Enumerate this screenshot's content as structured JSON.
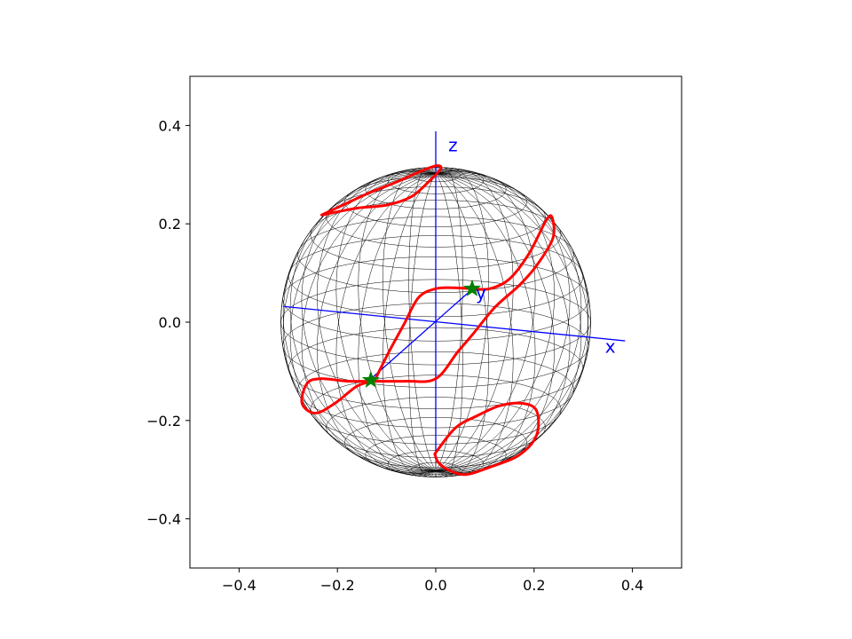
{
  "chart_data": {
    "type": "line",
    "title": "",
    "xlabel": "",
    "ylabel": "",
    "xlim": [
      -0.5,
      0.5
    ],
    "ylim": [
      -0.5,
      0.5
    ],
    "xticks": [
      -0.4,
      -0.2,
      0.0,
      0.2,
      0.4
    ],
    "yticks": [
      -0.4,
      -0.2,
      0.0,
      0.2,
      0.4
    ],
    "xtick_labels": [
      "−0.4",
      "−0.2",
      "0.0",
      "0.2",
      "0.4"
    ],
    "ytick_labels": [
      "−0.4",
      "−0.2",
      "0.0",
      "0.2",
      "0.4"
    ],
    "grid": false,
    "legend": "none",
    "sphere": {
      "center": [
        0.0,
        0.0
      ],
      "radius": 0.315,
      "wireframe_color": "#000000",
      "south_pole_center": [
        -0.005,
        -0.27
      ]
    },
    "axes_3d": {
      "color": "#0000ff",
      "x_axis": {
        "label": "x",
        "from": [
          -0.31,
          0.032
        ],
        "to": [
          0.385,
          -0.038
        ],
        "label_at": [
          0.355,
          -0.05
        ]
      },
      "y_axis": {
        "label": "y",
        "from": [
          -0.135,
          -0.118
        ],
        "to": [
          0.075,
          0.068
        ],
        "label_at": [
          0.092,
          0.06
        ]
      },
      "z_axis": {
        "label": "z",
        "from": [
          0.0,
          -0.27
        ],
        "to": [
          0.0,
          0.388
        ],
        "label_at": [
          0.035,
          0.36
        ]
      }
    },
    "series": [
      {
        "color": "#ff0000",
        "points": [
          [
            -0.125,
            -0.12
          ],
          [
            -0.095,
            -0.06
          ],
          [
            -0.065,
            -0.005
          ],
          [
            -0.035,
            0.05
          ],
          [
            0.0,
            0.068
          ],
          [
            0.035,
            0.07
          ],
          [
            0.075,
            0.068
          ],
          [
            0.11,
            0.068
          ],
          [
            0.15,
            0.088
          ],
          [
            0.19,
            0.14
          ],
          [
            0.225,
            0.208
          ],
          [
            0.237,
            0.212
          ],
          [
            0.238,
            0.17
          ],
          [
            0.205,
            0.115
          ],
          [
            0.17,
            0.075
          ],
          [
            0.12,
            0.03
          ],
          [
            0.075,
            -0.025
          ],
          [
            0.045,
            -0.06
          ],
          [
            0.0,
            -0.115
          ],
          [
            -0.06,
            -0.12
          ],
          [
            -0.13,
            -0.12
          ],
          [
            -0.18,
            -0.12
          ],
          [
            -0.235,
            -0.115
          ],
          [
            -0.262,
            -0.125
          ],
          [
            -0.272,
            -0.165
          ],
          [
            -0.245,
            -0.185
          ],
          [
            -0.205,
            -0.165
          ],
          [
            -0.16,
            -0.13
          ],
          [
            -0.125,
            -0.12
          ]
        ]
      },
      {
        "color": "#ff0000",
        "points": [
          [
            -0.232,
            0.218
          ],
          [
            -0.185,
            0.24
          ],
          [
            -0.135,
            0.263
          ],
          [
            -0.08,
            0.285
          ],
          [
            -0.035,
            0.305
          ],
          [
            0.0,
            0.318
          ],
          [
            0.01,
            0.312
          ],
          [
            -0.015,
            0.285
          ],
          [
            -0.05,
            0.255
          ],
          [
            -0.1,
            0.238
          ],
          [
            -0.16,
            0.232
          ],
          [
            -0.232,
            0.218
          ]
        ]
      },
      {
        "color": "#ff0000",
        "points": [
          [
            -0.002,
            -0.268
          ],
          [
            0.04,
            -0.215
          ],
          [
            0.085,
            -0.19
          ],
          [
            0.13,
            -0.17
          ],
          [
            0.175,
            -0.165
          ],
          [
            0.205,
            -0.18
          ],
          [
            0.205,
            -0.23
          ],
          [
            0.17,
            -0.27
          ],
          [
            0.11,
            -0.295
          ],
          [
            0.06,
            -0.31
          ],
          [
            0.025,
            -0.3
          ],
          [
            0.005,
            -0.285
          ],
          [
            -0.002,
            -0.268
          ]
        ]
      }
    ],
    "markers": [
      {
        "shape": "star",
        "color": "#008000",
        "x": -0.132,
        "y": -0.118
      },
      {
        "shape": "star",
        "color": "#008000",
        "x": 0.074,
        "y": 0.068
      }
    ]
  }
}
